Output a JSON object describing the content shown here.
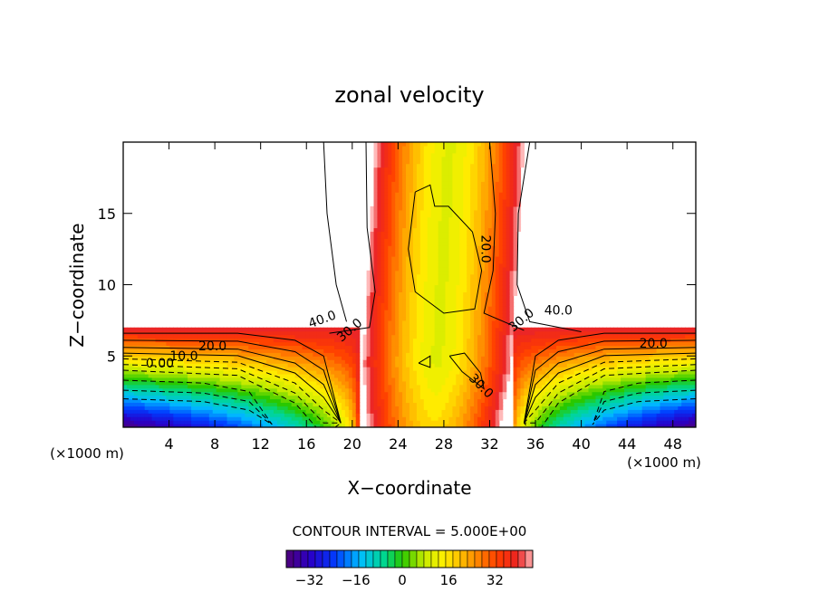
{
  "chart_data": {
    "type": "contour",
    "title": "zonal velocity",
    "xlabel": "X−coordinate",
    "ylabel": "Z−coordinate",
    "x_unit_left": "(×1000 m)",
    "x_unit_right": "(×1000 m)",
    "xlim": [
      0,
      50
    ],
    "ylim": [
      0,
      20
    ],
    "xticks": [
      4,
      8,
      12,
      16,
      20,
      24,
      28,
      32,
      36,
      40,
      44,
      48
    ],
    "yticks": [
      5,
      10,
      15
    ],
    "contour_interval_text": "CONTOUR INTERVAL = 5.000E+00",
    "colorbar": {
      "range": [
        -40,
        45
      ],
      "tick_values": [
        -32,
        -16,
        0,
        16,
        32
      ],
      "tick_labels": [
        "−32",
        "−16",
        "0",
        "16",
        "32"
      ]
    },
    "contour_labels": [
      {
        "text": "40.0",
        "x": 17.5,
        "z": 7.3
      },
      {
        "text": "30.0",
        "x": 20.0,
        "z": 6.6
      },
      {
        "text": "20.0",
        "x": 7.8,
        "z": 5.4
      },
      {
        "text": "10.0",
        "x": 5.3,
        "z": 4.7
      },
      {
        "text": "0.00",
        "x": 3.2,
        "z": 4.2
      },
      {
        "text": "20.0",
        "x": 31.3,
        "z": 12.5
      },
      {
        "text": "30.0",
        "x": 31.0,
        "z": 2.7
      },
      {
        "text": "30.0",
        "x": 35.0,
        "z": 7.3
      },
      {
        "text": "40.0",
        "x": 38.0,
        "z": 7.9
      },
      {
        "text": "20.0",
        "x": 46.3,
        "z": 5.6
      }
    ],
    "field_description_points": {
      "upper_left_max": 48,
      "upper_right_max": 48,
      "jet_core_min": 12,
      "lower_left_min": -38,
      "lower_right_min": -38
    }
  }
}
